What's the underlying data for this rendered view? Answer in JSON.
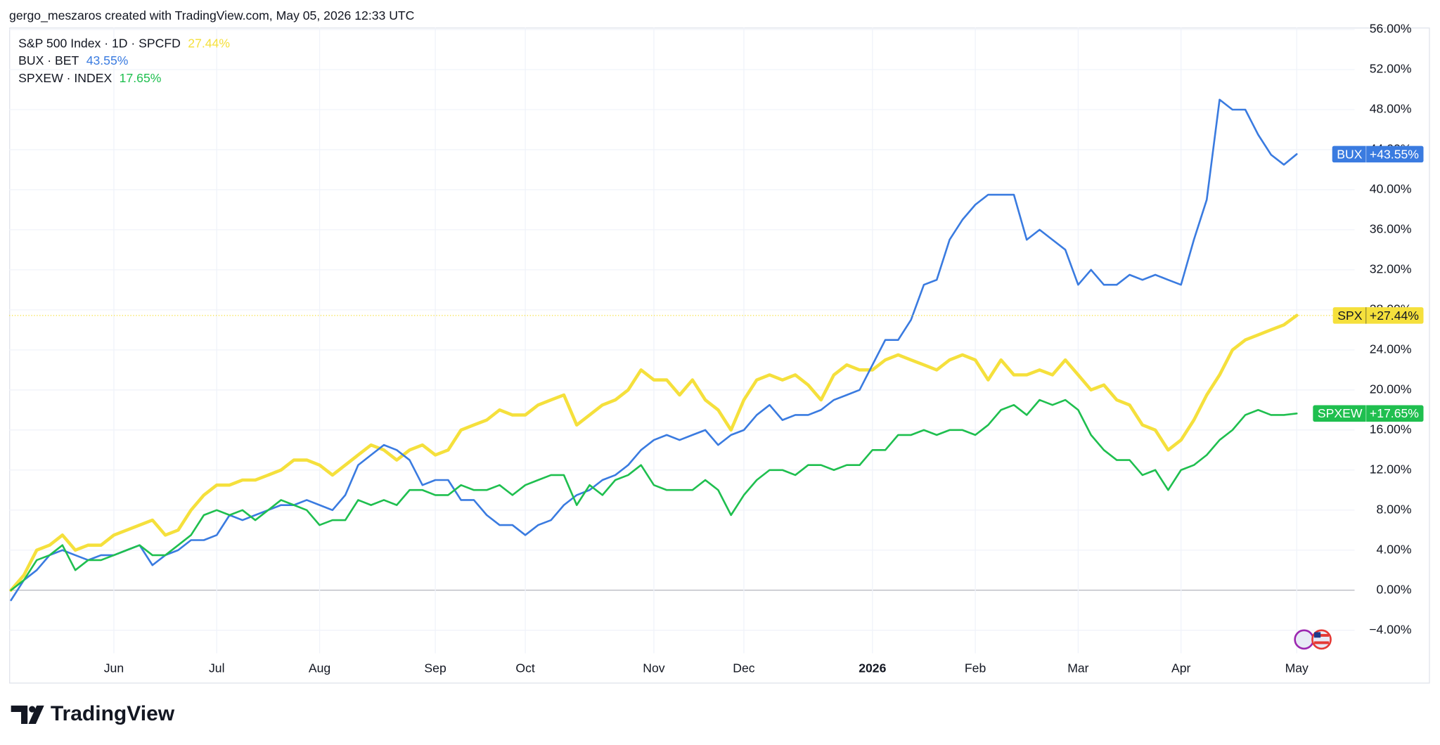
{
  "chart_data": {
    "type": "line",
    "title": "gergo_meszaros created with TradingView.com, May 05, 2026 12:33 UTC",
    "logo_text": "TradingView",
    "categories": [
      null,
      null,
      null,
      null,
      null,
      null,
      null,
      null,
      "Jun",
      null,
      null,
      null,
      null,
      null,
      null,
      null,
      "Jul",
      null,
      null,
      null,
      null,
      null,
      null,
      null,
      "Aug",
      null,
      null,
      null,
      null,
      null,
      null,
      null,
      null,
      "Sep",
      null,
      null,
      null,
      null,
      null,
      null,
      "Oct",
      null,
      null,
      null,
      null,
      null,
      null,
      null,
      null,
      null,
      "Nov",
      null,
      null,
      null,
      null,
      null,
      null,
      "Dec",
      null,
      null,
      null,
      null,
      null,
      null,
      null,
      null,
      null,
      "2026",
      null,
      null,
      null,
      null,
      null,
      null,
      null,
      "Feb",
      null,
      null,
      null,
      null,
      null,
      null,
      null,
      "Mar",
      null,
      null,
      null,
      null,
      null,
      null,
      null,
      "Apr",
      null,
      null,
      null,
      null,
      null,
      null,
      null,
      null,
      "May"
    ],
    "series": [
      {
        "name": "S&P 500 Index · 1D · SPCFD",
        "legend_value_label": "27.44%",
        "tag": "SPX",
        "tag_value_label": "+27.44%",
        "color": "#f5e03c",
        "tag_text_color": "#131722",
        "line_width": 3.5,
        "values": [
          0,
          1.5,
          4,
          4.5,
          5.5,
          4,
          4.5,
          4.5,
          5.5,
          6,
          6.5,
          7,
          5.5,
          6,
          8,
          9.5,
          10.5,
          10.5,
          11,
          11,
          11.5,
          12,
          13,
          13,
          12.5,
          11.5,
          12.5,
          13.5,
          14.5,
          14,
          13,
          14,
          14.5,
          13.5,
          14,
          16,
          16.5,
          17,
          18,
          17.5,
          17.5,
          18.5,
          19,
          19.5,
          16.5,
          17.5,
          18.5,
          19,
          20,
          22,
          21,
          21,
          19.5,
          21,
          19,
          18,
          16,
          19,
          21,
          21.5,
          21,
          21.5,
          20.5,
          19,
          21.5,
          22.5,
          22,
          22,
          23,
          23.5,
          23,
          22.5,
          22,
          23,
          23.5,
          23,
          21,
          23,
          21.5,
          21.5,
          22,
          21.5,
          23,
          21.5,
          20,
          20.5,
          19,
          18.5,
          16.5,
          16,
          14,
          15,
          17,
          19.5,
          21.5,
          24,
          25,
          25.5,
          26,
          26.5,
          27.44
        ]
      },
      {
        "name": "BUX · BET",
        "legend_value_label": "43.55%",
        "tag": "BUX",
        "tag_value_label": "+43.55%",
        "color": "#3a7be0",
        "tag_text_color": "#ffffff",
        "line_width": 2,
        "values": [
          -1,
          1,
          2,
          3.5,
          4,
          3.5,
          3,
          3.5,
          3.5,
          4,
          4.5,
          2.5,
          3.5,
          4,
          5,
          5,
          5.5,
          7.5,
          7,
          7.5,
          8,
          8.5,
          8.5,
          9,
          8.5,
          8,
          9.5,
          12.5,
          13.5,
          14.5,
          14,
          13,
          10.5,
          11,
          11,
          9,
          9,
          7.5,
          6.5,
          6.5,
          5.5,
          6.5,
          7,
          8.5,
          9.5,
          10,
          11,
          11.5,
          12.5,
          14,
          15,
          15.5,
          15,
          15.5,
          16,
          14.5,
          15.5,
          16,
          17.5,
          18.5,
          17,
          17.5,
          17.5,
          18,
          19,
          19.5,
          20,
          22.5,
          25,
          25,
          27,
          30.5,
          31,
          35,
          37,
          38.5,
          39.5,
          39.5,
          39.5,
          35,
          36,
          35,
          34,
          30.5,
          32,
          30.5,
          30.5,
          31.5,
          31,
          31.5,
          31,
          30.5,
          35,
          39,
          49,
          48,
          48,
          45.5,
          43.5,
          42.5,
          43.55
        ]
      },
      {
        "name": "SPXEW · INDEX",
        "legend_value_label": "17.65%",
        "tag": "SPXEW",
        "tag_value_label": "+17.65%",
        "color": "#1fbf4f",
        "tag_text_color": "#ffffff",
        "line_width": 2,
        "values": [
          0,
          1,
          3,
          3.5,
          4.5,
          2,
          3,
          3,
          3.5,
          4,
          4.5,
          3.5,
          3.5,
          4.5,
          5.5,
          7.5,
          8,
          7.5,
          8,
          7,
          8,
          9,
          8.5,
          8,
          6.5,
          7,
          7,
          9,
          8.5,
          9,
          8.5,
          10,
          10,
          9.5,
          9.5,
          10.5,
          10,
          10,
          10.5,
          9.5,
          10.5,
          11,
          11.5,
          11.5,
          8.5,
          10.5,
          9.5,
          11,
          11.5,
          12.5,
          10.5,
          10,
          10,
          10,
          11,
          10,
          7.5,
          9.5,
          11,
          12,
          12,
          11.5,
          12.5,
          12.5,
          12,
          12.5,
          12.5,
          14,
          14,
          15.5,
          15.5,
          16,
          15.5,
          16,
          16,
          15.5,
          16.5,
          18,
          18.5,
          17.5,
          19,
          18.5,
          19,
          18,
          15.5,
          14,
          13,
          13,
          11.5,
          12,
          10,
          12,
          12.5,
          13.5,
          15,
          16,
          17.5,
          18,
          17.5,
          17.5,
          17.65
        ]
      }
    ],
    "ylim": [
      -6.3,
      56.2
    ],
    "yticks": [
      {
        "value": -4,
        "label": "−4.00%"
      },
      {
        "value": 0,
        "label": "0.00%"
      },
      {
        "value": 4,
        "label": "4.00%"
      },
      {
        "value": 8,
        "label": "8.00%"
      },
      {
        "value": 12,
        "label": "12.00%"
      },
      {
        "value": 16,
        "label": "16.00%"
      },
      {
        "value": 20,
        "label": "20.00%"
      },
      {
        "value": 24,
        "label": "24.00%"
      },
      {
        "value": 28,
        "label": "28.00%"
      },
      {
        "value": 32,
        "label": "32.00%"
      },
      {
        "value": 36,
        "label": "36.00%"
      },
      {
        "value": 40,
        "label": "40.00%"
      },
      {
        "value": 44,
        "label": "44.00%"
      },
      {
        "value": 48,
        "label": "48.00%"
      },
      {
        "value": 52,
        "label": "52.00%"
      },
      {
        "value": 56,
        "label": "56.00%"
      }
    ],
    "grid": true
  }
}
